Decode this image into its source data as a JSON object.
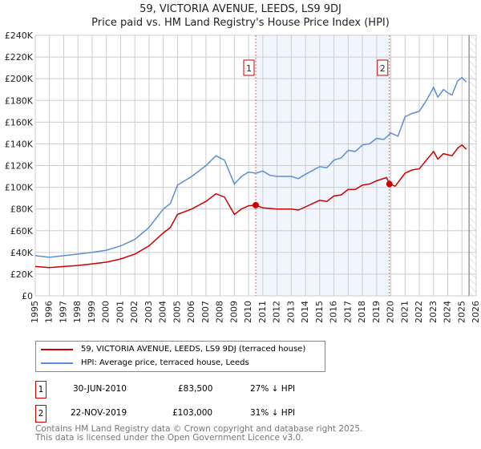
{
  "chart_data": {
    "type": "line",
    "title": "59, VICTORIA AVENUE, LEEDS, LS9 9DJ",
    "subtitle": "Price paid vs. HM Land Registry's House Price Index (HPI)",
    "xlim": [
      1995,
      2026
    ],
    "ylim": [
      0,
      240000
    ],
    "y_ticks": [
      "£0",
      "£20K",
      "£40K",
      "£60K",
      "£80K",
      "£100K",
      "£120K",
      "£140K",
      "£160K",
      "£180K",
      "£200K",
      "£220K",
      "£240K"
    ],
    "x_ticks": [
      "1995",
      "1996",
      "1997",
      "1998",
      "1999",
      "2000",
      "2001",
      "2002",
      "2003",
      "2004",
      "2005",
      "2006",
      "2007",
      "2008",
      "2009",
      "2010",
      "2011",
      "2012",
      "2013",
      "2014",
      "2015",
      "2016",
      "2017",
      "2018",
      "2019",
      "2020",
      "2021",
      "2022",
      "2023",
      "2024",
      "2025",
      "2026"
    ],
    "grid": true,
    "series": [
      {
        "name": "59, VICTORIA AVENUE, LEEDS, LS9 9DJ (terraced house)",
        "color": "#cc0000",
        "x": [
          1995,
          1996,
          1997,
          1998,
          1999,
          2000,
          2001,
          2002,
          2003,
          2004,
          2004.5,
          2005,
          2006,
          2007,
          2007.7,
          2008.3,
          2009,
          2009.5,
          2010,
          2010.5,
          2011,
          2012,
          2013,
          2013.5,
          2014,
          2015,
          2015.5,
          2016,
          2016.5,
          2017,
          2017.5,
          2018,
          2018.5,
          2019,
          2019.7,
          2019.9,
          2020.3,
          2021,
          2021.5,
          2022,
          2022.5,
          2023,
          2023.3,
          2023.7,
          2024,
          2024.3,
          2024.7,
          2025,
          2025.3
        ],
        "y": [
          27000,
          26000,
          27000,
          28000,
          29500,
          31000,
          34000,
          38500,
          46000,
          58000,
          63000,
          75000,
          80000,
          87000,
          94000,
          91000,
          75000,
          80000,
          83000,
          83500,
          81000,
          80000,
          80000,
          79000,
          82000,
          88000,
          87000,
          92000,
          93000,
          98000,
          98000,
          102000,
          103000,
          106000,
          109000,
          103000,
          101000,
          113000,
          116000,
          117000,
          125000,
          133000,
          126000,
          131000,
          130000,
          129000,
          136000,
          139000,
          135000
        ]
      },
      {
        "name": "HPI: Average price, terraced house, Leeds",
        "color": "#5b8fd4",
        "x": [
          1995,
          1996,
          1997,
          1998,
          1999,
          2000,
          2001,
          2002,
          2003,
          2004,
          2004.5,
          2005,
          2006,
          2007,
          2007.7,
          2008.3,
          2009,
          2009.5,
          2010,
          2010.5,
          2011,
          2011.5,
          2012,
          2013,
          2013.5,
          2014,
          2015,
          2015.5,
          2016,
          2016.5,
          2017,
          2017.5,
          2018,
          2018.5,
          2019,
          2019.5,
          2020,
          2020.5,
          2021,
          2021.5,
          2022,
          2022.5,
          2023,
          2023.3,
          2023.7,
          2024,
          2024.3,
          2024.7,
          2025,
          2025.3
        ],
        "y": [
          37000,
          35500,
          37000,
          38500,
          40000,
          42000,
          46000,
          52000,
          63000,
          80000,
          85000,
          102000,
          110000,
          120000,
          129000,
          125000,
          103000,
          110000,
          114000,
          113000,
          115000,
          111000,
          110000,
          110000,
          108000,
          112000,
          119000,
          118000,
          125000,
          127000,
          134000,
          133000,
          139000,
          140000,
          145000,
          144000,
          150000,
          147000,
          165000,
          168000,
          170000,
          180000,
          192000,
          183000,
          190000,
          187000,
          185000,
          198000,
          201000,
          197000
        ]
      }
    ],
    "sales": [
      {
        "label": "1",
        "x": 2010.5,
        "y": 83500,
        "date": "30-JUN-2010",
        "price": "£83,500",
        "hpi": "27% ↓ HPI"
      },
      {
        "label": "2",
        "x": 2019.9,
        "y": 103000,
        "date": "22-NOV-2019",
        "price": "£103,000",
        "hpi": "31% ↓ HPI"
      }
    ],
    "hatch_from": 2025.5,
    "legend_position": "below"
  },
  "footer": {
    "line1": "Contains HM Land Registry data © Crown copyright and database right 2025.",
    "line2": "This data is licensed under the Open Government Licence v3.0."
  }
}
